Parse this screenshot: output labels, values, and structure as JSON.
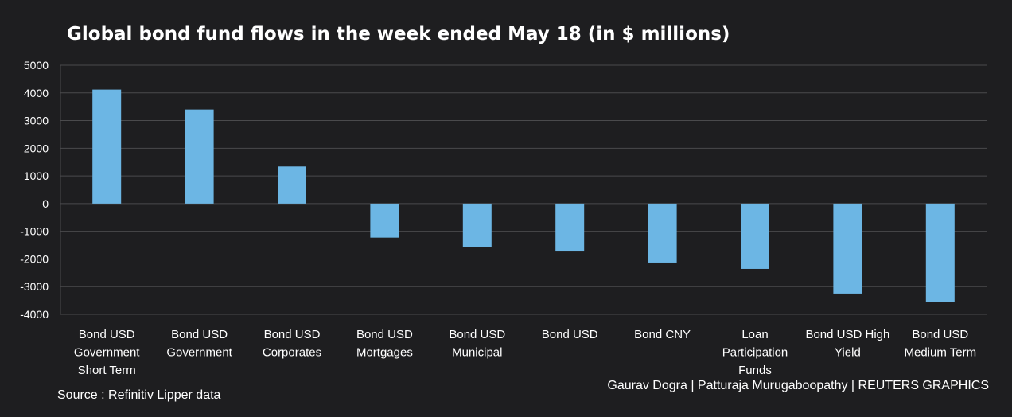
{
  "chart_data": {
    "type": "bar",
    "title": "Global bond fund flows in the week ended May 18 (in $ millions)",
    "categories": [
      [
        "Bond USD",
        "Government",
        "Short Term"
      ],
      [
        "Bond USD",
        "Government"
      ],
      [
        "Bond USD",
        "Corporates"
      ],
      [
        "Bond USD",
        "Mortgages"
      ],
      [
        "Bond USD",
        "Municipal"
      ],
      [
        "Bond USD"
      ],
      [
        "Bond CNY"
      ],
      [
        "Loan",
        "Participation",
        "Funds"
      ],
      [
        "Bond USD High",
        "Yield"
      ],
      [
        "Bond USD",
        "Medium Term"
      ]
    ],
    "values": [
      4120,
      3400,
      1340,
      -1230,
      -1580,
      -1730,
      -2130,
      -2360,
      -3250,
      -3560
    ],
    "ylim": [
      -4000,
      5000
    ],
    "yticks": [
      5000,
      4000,
      3000,
      2000,
      1000,
      0,
      -1000,
      -2000,
      -3000,
      -4000
    ],
    "grid": true,
    "bar_color": "#6cb6e4",
    "grid_color": "#4a4a4c",
    "tick_color": "#ffffff"
  },
  "footer": {
    "source": "Source : Refinitiv Lipper data",
    "credit": "Gaurav Dogra | Patturaja Murugaboopathy | REUTERS GRAPHICS"
  }
}
